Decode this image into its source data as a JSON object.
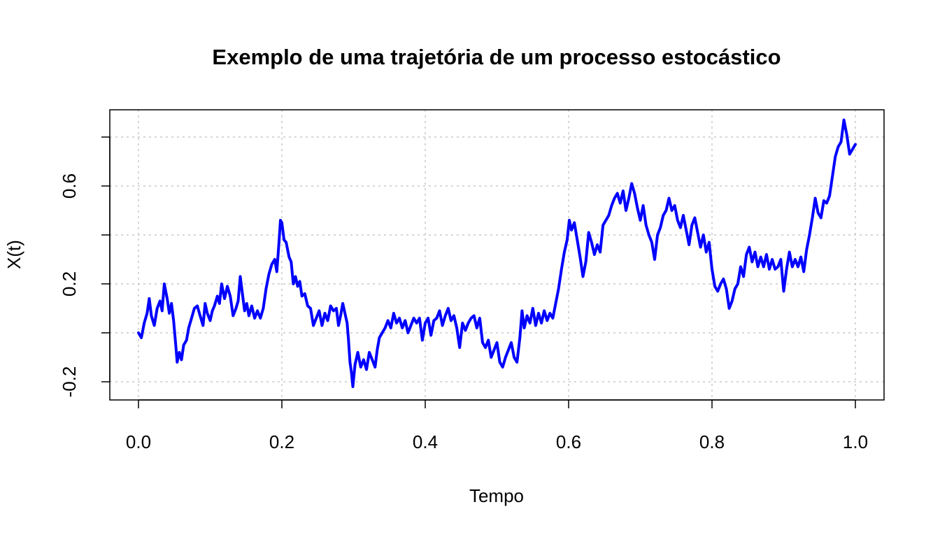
{
  "chart_data": {
    "type": "line",
    "title": "Exemplo de uma trajetória de um processo estocástico",
    "xlabel": "Tempo",
    "ylabel": "X(t)",
    "xlim": [
      0.0,
      1.0
    ],
    "ylim": [
      -0.24,
      0.94
    ],
    "x_ticks": [
      "0.0",
      "0.2",
      "0.4",
      "0.6",
      "0.8",
      "1.0"
    ],
    "y_ticks": [
      "-0.2",
      "0.2",
      "0.6"
    ],
    "grid": true,
    "line_color": "#0000ff",
    "grid_color": "#c8c8c8",
    "series": [
      {
        "values": [
          [
            0.0,
            0.0
          ],
          [
            0.004,
            -0.02
          ],
          [
            0.008,
            0.04
          ],
          [
            0.012,
            0.08
          ],
          [
            0.015,
            0.14
          ],
          [
            0.018,
            0.07
          ],
          [
            0.022,
            0.03
          ],
          [
            0.026,
            0.1
          ],
          [
            0.03,
            0.13
          ],
          [
            0.033,
            0.09
          ],
          [
            0.036,
            0.2
          ],
          [
            0.04,
            0.14
          ],
          [
            0.043,
            0.08
          ],
          [
            0.046,
            0.12
          ],
          [
            0.049,
            0.05
          ],
          [
            0.052,
            -0.05
          ],
          [
            0.054,
            -0.12
          ],
          [
            0.057,
            -0.08
          ],
          [
            0.06,
            -0.11
          ],
          [
            0.063,
            -0.05
          ],
          [
            0.067,
            -0.03
          ],
          [
            0.07,
            0.02
          ],
          [
            0.074,
            0.06
          ],
          [
            0.078,
            0.1
          ],
          [
            0.082,
            0.11
          ],
          [
            0.086,
            0.07
          ],
          [
            0.09,
            0.03
          ],
          [
            0.093,
            0.12
          ],
          [
            0.096,
            0.08
          ],
          [
            0.1,
            0.05
          ],
          [
            0.103,
            0.09
          ],
          [
            0.106,
            0.11
          ],
          [
            0.11,
            0.15
          ],
          [
            0.113,
            0.12
          ],
          [
            0.116,
            0.2
          ],
          [
            0.12,
            0.14
          ],
          [
            0.124,
            0.19
          ],
          [
            0.128,
            0.15
          ],
          [
            0.132,
            0.07
          ],
          [
            0.136,
            0.1
          ],
          [
            0.139,
            0.13
          ],
          [
            0.142,
            0.23
          ],
          [
            0.145,
            0.16
          ],
          [
            0.148,
            0.09
          ],
          [
            0.151,
            0.12
          ],
          [
            0.154,
            0.07
          ],
          [
            0.158,
            0.11
          ],
          [
            0.162,
            0.06
          ],
          [
            0.166,
            0.09
          ],
          [
            0.17,
            0.06
          ],
          [
            0.174,
            0.1
          ],
          [
            0.178,
            0.18
          ],
          [
            0.182,
            0.24
          ],
          [
            0.186,
            0.28
          ],
          [
            0.19,
            0.3
          ],
          [
            0.193,
            0.25
          ],
          [
            0.196,
            0.37
          ],
          [
            0.198,
            0.46
          ],
          [
            0.2,
            0.45
          ],
          [
            0.203,
            0.38
          ],
          [
            0.206,
            0.37
          ],
          [
            0.21,
            0.31
          ],
          [
            0.213,
            0.29
          ],
          [
            0.216,
            0.2
          ],
          [
            0.219,
            0.23
          ],
          [
            0.222,
            0.19
          ],
          [
            0.225,
            0.21
          ],
          [
            0.228,
            0.15
          ],
          [
            0.232,
            0.16
          ],
          [
            0.236,
            0.11
          ],
          [
            0.24,
            0.1
          ],
          [
            0.244,
            0.03
          ],
          [
            0.248,
            0.06
          ],
          [
            0.252,
            0.09
          ],
          [
            0.256,
            0.03
          ],
          [
            0.26,
            0.08
          ],
          [
            0.264,
            0.05
          ],
          [
            0.268,
            0.11
          ],
          [
            0.272,
            0.09
          ],
          [
            0.276,
            0.1
          ],
          [
            0.279,
            0.03
          ],
          [
            0.282,
            0.07
          ],
          [
            0.285,
            0.12
          ],
          [
            0.288,
            0.08
          ],
          [
            0.291,
            0.04
          ],
          [
            0.293,
            -0.03
          ],
          [
            0.295,
            -0.12
          ],
          [
            0.297,
            -0.16
          ],
          [
            0.299,
            -0.22
          ],
          [
            0.302,
            -0.13
          ],
          [
            0.306,
            -0.08
          ],
          [
            0.31,
            -0.14
          ],
          [
            0.314,
            -0.11
          ],
          [
            0.318,
            -0.15
          ],
          [
            0.322,
            -0.08
          ],
          [
            0.326,
            -0.11
          ],
          [
            0.33,
            -0.14
          ],
          [
            0.333,
            -0.07
          ],
          [
            0.336,
            -0.02
          ],
          [
            0.34,
            0.0
          ],
          [
            0.344,
            0.02
          ],
          [
            0.348,
            0.05
          ],
          [
            0.352,
            0.02
          ],
          [
            0.356,
            0.08
          ],
          [
            0.36,
            0.04
          ],
          [
            0.364,
            0.06
          ],
          [
            0.368,
            0.02
          ],
          [
            0.372,
            0.05
          ],
          [
            0.376,
            0.0
          ],
          [
            0.38,
            0.03
          ],
          [
            0.384,
            0.06
          ],
          [
            0.388,
            0.04
          ],
          [
            0.392,
            0.06
          ],
          [
            0.396,
            -0.03
          ],
          [
            0.4,
            0.04
          ],
          [
            0.404,
            0.06
          ],
          [
            0.408,
            -0.01
          ],
          [
            0.412,
            0.05
          ],
          [
            0.416,
            0.06
          ],
          [
            0.42,
            0.09
          ],
          [
            0.424,
            0.03
          ],
          [
            0.428,
            0.07
          ],
          [
            0.432,
            0.1
          ],
          [
            0.436,
            0.05
          ],
          [
            0.44,
            0.07
          ],
          [
            0.444,
            0.02
          ],
          [
            0.448,
            -0.06
          ],
          [
            0.452,
            0.04
          ],
          [
            0.456,
            0.01
          ],
          [
            0.46,
            0.04
          ],
          [
            0.464,
            0.06
          ],
          [
            0.468,
            0.07
          ],
          [
            0.472,
            0.02
          ],
          [
            0.476,
            0.06
          ],
          [
            0.48,
            -0.04
          ],
          [
            0.484,
            -0.06
          ],
          [
            0.488,
            -0.03
          ],
          [
            0.492,
            -0.1
          ],
          [
            0.496,
            -0.07
          ],
          [
            0.5,
            -0.04
          ],
          [
            0.504,
            -0.12
          ],
          [
            0.508,
            -0.14
          ],
          [
            0.512,
            -0.1
          ],
          [
            0.516,
            -0.07
          ],
          [
            0.52,
            -0.04
          ],
          [
            0.524,
            -0.1
          ],
          [
            0.528,
            -0.12
          ],
          [
            0.532,
            -0.02
          ],
          [
            0.535,
            0.09
          ],
          [
            0.538,
            0.02
          ],
          [
            0.542,
            0.07
          ],
          [
            0.546,
            0.04
          ],
          [
            0.55,
            0.1
          ],
          [
            0.554,
            0.03
          ],
          [
            0.558,
            0.08
          ],
          [
            0.562,
            0.04
          ],
          [
            0.566,
            0.09
          ],
          [
            0.57,
            0.05
          ],
          [
            0.574,
            0.08
          ],
          [
            0.578,
            0.06
          ],
          [
            0.582,
            0.12
          ],
          [
            0.586,
            0.18
          ],
          [
            0.59,
            0.26
          ],
          [
            0.594,
            0.33
          ],
          [
            0.598,
            0.38
          ],
          [
            0.601,
            0.46
          ],
          [
            0.604,
            0.42
          ],
          [
            0.608,
            0.45
          ],
          [
            0.612,
            0.38
          ],
          [
            0.616,
            0.31
          ],
          [
            0.62,
            0.23
          ],
          [
            0.624,
            0.29
          ],
          [
            0.628,
            0.41
          ],
          [
            0.632,
            0.37
          ],
          [
            0.636,
            0.32
          ],
          [
            0.64,
            0.36
          ],
          [
            0.644,
            0.33
          ],
          [
            0.648,
            0.44
          ],
          [
            0.652,
            0.46
          ],
          [
            0.656,
            0.48
          ],
          [
            0.66,
            0.52
          ],
          [
            0.664,
            0.55
          ],
          [
            0.668,
            0.57
          ],
          [
            0.672,
            0.53
          ],
          [
            0.676,
            0.58
          ],
          [
            0.68,
            0.5
          ],
          [
            0.684,
            0.55
          ],
          [
            0.688,
            0.61
          ],
          [
            0.692,
            0.57
          ],
          [
            0.696,
            0.51
          ],
          [
            0.7,
            0.46
          ],
          [
            0.704,
            0.52
          ],
          [
            0.708,
            0.44
          ],
          [
            0.712,
            0.4
          ],
          [
            0.716,
            0.37
          ],
          [
            0.72,
            0.3
          ],
          [
            0.724,
            0.4
          ],
          [
            0.728,
            0.43
          ],
          [
            0.732,
            0.48
          ],
          [
            0.736,
            0.5
          ],
          [
            0.74,
            0.55
          ],
          [
            0.744,
            0.5
          ],
          [
            0.748,
            0.52
          ],
          [
            0.752,
            0.46
          ],
          [
            0.756,
            0.43
          ],
          [
            0.76,
            0.48
          ],
          [
            0.764,
            0.42
          ],
          [
            0.768,
            0.36
          ],
          [
            0.772,
            0.44
          ],
          [
            0.776,
            0.47
          ],
          [
            0.78,
            0.41
          ],
          [
            0.784,
            0.35
          ],
          [
            0.788,
            0.4
          ],
          [
            0.792,
            0.33
          ],
          [
            0.796,
            0.37
          ],
          [
            0.8,
            0.26
          ],
          [
            0.804,
            0.19
          ],
          [
            0.808,
            0.17
          ],
          [
            0.812,
            0.2
          ],
          [
            0.816,
            0.22
          ],
          [
            0.82,
            0.18
          ],
          [
            0.824,
            0.1
          ],
          [
            0.828,
            0.13
          ],
          [
            0.832,
            0.18
          ],
          [
            0.836,
            0.2
          ],
          [
            0.84,
            0.27
          ],
          [
            0.844,
            0.23
          ],
          [
            0.848,
            0.32
          ],
          [
            0.852,
            0.35
          ],
          [
            0.856,
            0.29
          ],
          [
            0.86,
            0.33
          ],
          [
            0.864,
            0.27
          ],
          [
            0.868,
            0.31
          ],
          [
            0.872,
            0.27
          ],
          [
            0.876,
            0.32
          ],
          [
            0.88,
            0.26
          ],
          [
            0.884,
            0.3
          ],
          [
            0.888,
            0.26
          ],
          [
            0.892,
            0.27
          ],
          [
            0.896,
            0.3
          ],
          [
            0.9,
            0.17
          ],
          [
            0.904,
            0.26
          ],
          [
            0.908,
            0.33
          ],
          [
            0.912,
            0.27
          ],
          [
            0.916,
            0.3
          ],
          [
            0.92,
            0.27
          ],
          [
            0.924,
            0.31
          ],
          [
            0.928,
            0.25
          ],
          [
            0.932,
            0.34
          ],
          [
            0.936,
            0.4
          ],
          [
            0.94,
            0.47
          ],
          [
            0.944,
            0.55
          ],
          [
            0.948,
            0.49
          ],
          [
            0.952,
            0.47
          ],
          [
            0.956,
            0.54
          ],
          [
            0.96,
            0.53
          ],
          [
            0.964,
            0.56
          ],
          [
            0.968,
            0.64
          ],
          [
            0.972,
            0.72
          ],
          [
            0.976,
            0.76
          ],
          [
            0.98,
            0.78
          ],
          [
            0.984,
            0.87
          ],
          [
            0.988,
            0.81
          ],
          [
            0.992,
            0.73
          ],
          [
            0.996,
            0.75
          ],
          [
            1.0,
            0.77
          ]
        ]
      }
    ]
  }
}
